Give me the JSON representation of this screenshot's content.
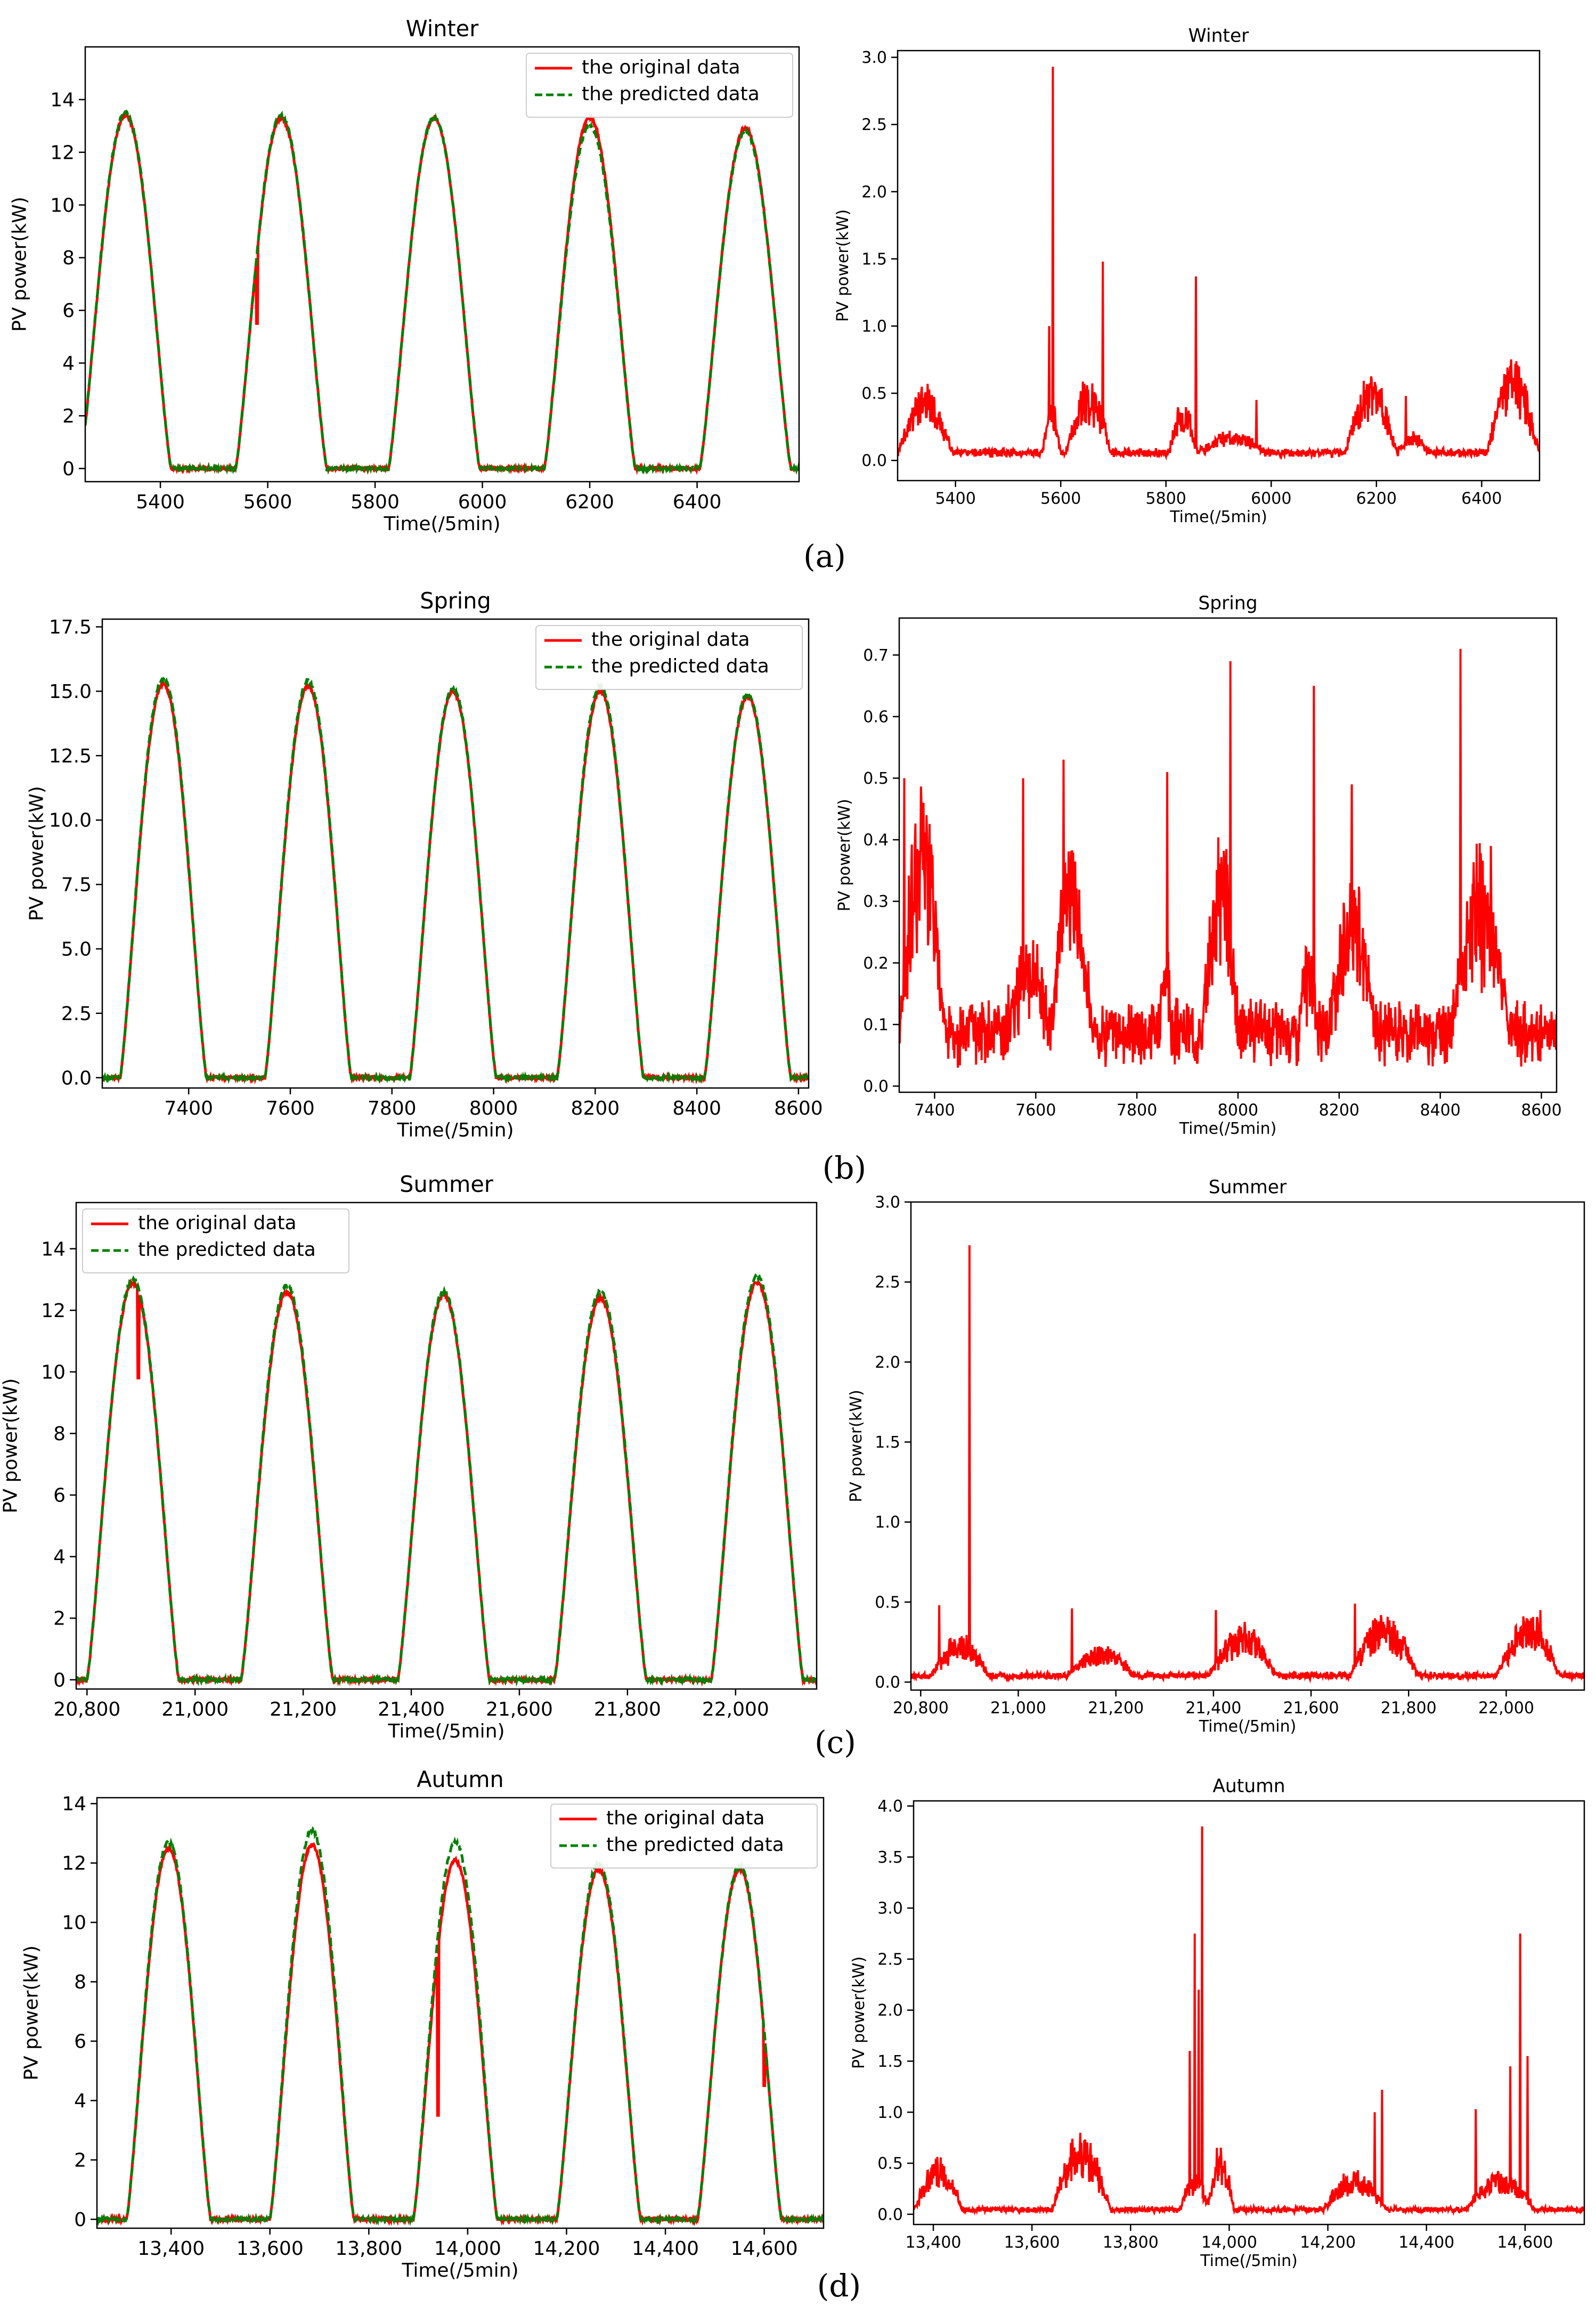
{
  "figure": {
    "panel_labels": [
      "(a)",
      "(b)",
      "(c)",
      "(d)"
    ],
    "series_colors": {
      "original": "#ff0000",
      "predicted": "#008000",
      "error": "#ff0000"
    }
  },
  "chart_data": [
    {
      "id": "winter-power",
      "type": "line",
      "title": "Winter",
      "xlabel": "Time(/5min)",
      "ylabel": "PV power(kW)",
      "xlim": [
        5260,
        6590
      ],
      "ylim": [
        -0.5,
        16
      ],
      "xticks": [
        5400,
        5600,
        5800,
        6000,
        6200,
        6400
      ],
      "xtick_labels": [
        "5400",
        "5600",
        "5800",
        "6000",
        "6200",
        "6400"
      ],
      "yticks": [
        0,
        2,
        4,
        6,
        8,
        10,
        12,
        14
      ],
      "ytick_labels": [
        "0",
        "2",
        "4",
        "6",
        "8",
        "10",
        "12",
        "14"
      ],
      "legend": {
        "position": "upper-right",
        "entries": [
          "the original data",
          "the predicted data"
        ]
      },
      "series": [
        {
          "name": "the original data",
          "style": "solid",
          "color": "#ff0000",
          "peak_centers": [
            5335,
            5625,
            5910,
            6200,
            6490
          ],
          "peaks": [
            13.4,
            13.3,
            13.3,
            13.3,
            12.9
          ],
          "half_width": 85,
          "dips": [
            {
              "x": 5580,
              "y": 5.5
            }
          ]
        },
        {
          "name": "the predicted data",
          "style": "dashed",
          "color": "#008000",
          "peak_centers": [
            5335,
            5625,
            5910,
            6200,
            6490
          ],
          "peaks": [
            13.5,
            13.4,
            13.3,
            13.0,
            12.8
          ],
          "half_width": 85
        }
      ]
    },
    {
      "id": "winter-error",
      "type": "line",
      "title": "Winter",
      "xlabel": "Time(/5min)",
      "ylabel": "PV power(kW)",
      "xlim": [
        5290,
        6510
      ],
      "ylim": [
        -0.15,
        3.05
      ],
      "xticks": [
        5400,
        5600,
        5800,
        6000,
        6200,
        6400
      ],
      "xtick_labels": [
        "5400",
        "5600",
        "5800",
        "6000",
        "6200",
        "6400"
      ],
      "yticks": [
        0,
        0.5,
        1,
        1.5,
        2,
        2.5,
        3
      ],
      "ytick_labels": [
        "0.0",
        "0.5",
        "1.0",
        "1.5",
        "2.0",
        "2.5",
        "3.0"
      ],
      "series": [
        {
          "name": "error",
          "style": "solid",
          "color": "#ff0000",
          "baseline": 0.05,
          "noise": 0.05,
          "bumps": [
            {
              "start": 5290,
              "end": 5395,
              "amp": 0.4
            },
            {
              "start": 5565,
              "end": 5600,
              "amp": 0.3
            },
            {
              "start": 5610,
              "end": 5695,
              "amp": 0.42
            },
            {
              "start": 5805,
              "end": 5860,
              "amp": 0.3
            },
            {
              "start": 5860,
              "end": 5990,
              "amp": 0.12
            },
            {
              "start": 6140,
              "end": 6240,
              "amp": 0.45
            },
            {
              "start": 6240,
              "end": 6300,
              "amp": 0.12
            },
            {
              "start": 6410,
              "end": 6510,
              "amp": 0.55
            }
          ],
          "spikes": [
            {
              "x": 5585,
              "y": 2.93
            },
            {
              "x": 5578,
              "y": 1.0
            },
            {
              "x": 5680,
              "y": 1.48
            },
            {
              "x": 5857,
              "y": 1.37
            },
            {
              "x": 5972,
              "y": 0.45
            },
            {
              "x": 6256,
              "y": 0.48
            }
          ]
        }
      ]
    },
    {
      "id": "spring-power",
      "type": "line",
      "title": "Spring",
      "xlabel": "Time(/5min)",
      "ylabel": "PV power(kW)",
      "xlim": [
        7230,
        8620
      ],
      "ylim": [
        -0.4,
        17.8
      ],
      "xticks": [
        7400,
        7600,
        7800,
        8000,
        8200,
        8400,
        8600
      ],
      "xtick_labels": [
        "7400",
        "7600",
        "7800",
        "8000",
        "8200",
        "8400",
        "8600"
      ],
      "yticks": [
        0,
        2.5,
        5,
        7.5,
        10,
        12.5,
        15,
        17.5
      ],
      "ytick_labels": [
        "0.0",
        "2.5",
        "5.0",
        "7.5",
        "10.0",
        "12.5",
        "15.0",
        "17.5"
      ],
      "legend": {
        "position": "upper-right",
        "entries": [
          "the original data",
          "the predicted data"
        ]
      },
      "series": [
        {
          "name": "the original data",
          "style": "solid",
          "color": "#ff0000",
          "peak_centers": [
            7350,
            7635,
            7920,
            8210,
            8500
          ],
          "peaks": [
            15.3,
            15.2,
            15.0,
            15.0,
            14.8
          ],
          "half_width": 85
        },
        {
          "name": "the predicted data",
          "style": "dashed",
          "color": "#008000",
          "peak_centers": [
            7350,
            7635,
            7920,
            8210,
            8500
          ],
          "peaks": [
            15.5,
            15.4,
            15.1,
            15.2,
            14.9
          ],
          "half_width": 85
        }
      ]
    },
    {
      "id": "spring-error",
      "type": "line",
      "title": "Spring",
      "xlabel": "Time(/5min)",
      "ylabel": "PV power(kW)",
      "xlim": [
        7330,
        8630
      ],
      "ylim": [
        -0.01,
        0.76
      ],
      "xticks": [
        7400,
        7600,
        7800,
        8000,
        8200,
        8400,
        8600
      ],
      "xtick_labels": [
        "7400",
        "7600",
        "7800",
        "8000",
        "8200",
        "8400",
        "8600"
      ],
      "yticks": [
        0,
        0.1,
        0.2,
        0.3,
        0.4,
        0.5,
        0.6,
        0.7
      ],
      "ytick_labels": [
        "0.0",
        "0.1",
        "0.2",
        "0.3",
        "0.4",
        "0.5",
        "0.6",
        "0.7"
      ],
      "series": [
        {
          "name": "error",
          "style": "solid",
          "color": "#ff0000",
          "baseline": 0.07,
          "noise": 0.1,
          "bumps": [
            {
              "start": 7330,
              "end": 7420,
              "amp": 0.3
            },
            {
              "start": 7540,
              "end": 7630,
              "amp": 0.1
            },
            {
              "start": 7630,
              "end": 7710,
              "amp": 0.25
            },
            {
              "start": 7840,
              "end": 7870,
              "amp": 0.1
            },
            {
              "start": 7930,
              "end": 8000,
              "amp": 0.25
            },
            {
              "start": 8120,
              "end": 8160,
              "amp": 0.1
            },
            {
              "start": 8180,
              "end": 8270,
              "amp": 0.2
            },
            {
              "start": 8420,
              "end": 8540,
              "amp": 0.2
            }
          ],
          "spikes": [
            {
              "x": 7340,
              "y": 0.5
            },
            {
              "x": 7575,
              "y": 0.5
            },
            {
              "x": 7655,
              "y": 0.53
            },
            {
              "x": 7860,
              "y": 0.51
            },
            {
              "x": 7985,
              "y": 0.69
            },
            {
              "x": 8150,
              "y": 0.65
            },
            {
              "x": 8225,
              "y": 0.49
            },
            {
              "x": 8440,
              "y": 0.71
            },
            {
              "x": 8500,
              "y": 0.39
            }
          ]
        }
      ]
    },
    {
      "id": "summer-power",
      "type": "line",
      "title": "Summer",
      "xlabel": "Time(/5min)",
      "ylabel": "PV power(kW)",
      "xlim": [
        20780,
        22150
      ],
      "ylim": [
        -0.3,
        15.5
      ],
      "xticks": [
        20800,
        21000,
        21200,
        21400,
        21600,
        21800,
        22000
      ],
      "xtick_labels": [
        "20,800",
        "21,000",
        "21,200",
        "21,400",
        "21,600",
        "21,800",
        "22,000"
      ],
      "yticks": [
        0,
        2,
        4,
        6,
        8,
        10,
        12,
        14
      ],
      "ytick_labels": [
        "0",
        "2",
        "4",
        "6",
        "8",
        "10",
        "12",
        "14"
      ],
      "legend": {
        "position": "upper-left",
        "entries": [
          "the original data",
          "the predicted data"
        ]
      },
      "series": [
        {
          "name": "the original data",
          "style": "solid",
          "color": "#ff0000",
          "peak_centers": [
            20885,
            21170,
            21460,
            21750,
            22040
          ],
          "peaks": [
            12.9,
            12.6,
            12.5,
            12.4,
            12.9
          ],
          "half_width": 85,
          "dips": [
            {
              "x": 20895,
              "y": 9.8
            }
          ]
        },
        {
          "name": "the predicted data",
          "style": "dashed",
          "color": "#008000",
          "peak_centers": [
            20885,
            21170,
            21460,
            21750,
            22040
          ],
          "peaks": [
            13.0,
            12.8,
            12.6,
            12.6,
            13.1
          ],
          "half_width": 85
        }
      ]
    },
    {
      "id": "summer-error",
      "type": "line",
      "title": "Summer",
      "xlabel": "Time(/5min)",
      "ylabel": "PV power(kW)",
      "xlim": [
        20780,
        22160
      ],
      "ylim": [
        -0.05,
        3.0
      ],
      "xticks": [
        20800,
        21000,
        21200,
        21400,
        21600,
        21800,
        22000
      ],
      "xtick_labels": [
        "20,800",
        "21,000",
        "21,200",
        "21,400",
        "21,600",
        "21,800",
        "22,000"
      ],
      "yticks": [
        0,
        0.5,
        1,
        1.5,
        2,
        2.5,
        3
      ],
      "ytick_labels": [
        "0.0",
        "0.5",
        "1.0",
        "1.5",
        "2.0",
        "2.5",
        "3.0"
      ],
      "series": [
        {
          "name": "error",
          "style": "solid",
          "color": "#ff0000",
          "baseline": 0.03,
          "noise": 0.05,
          "bumps": [
            {
              "start": 20820,
              "end": 20940,
              "amp": 0.2
            },
            {
              "start": 21100,
              "end": 21240,
              "amp": 0.15
            },
            {
              "start": 21390,
              "end": 21530,
              "amp": 0.25
            },
            {
              "start": 21680,
              "end": 21820,
              "amp": 0.3
            },
            {
              "start": 21980,
              "end": 22110,
              "amp": 0.3
            }
          ],
          "spikes": [
            {
              "x": 20900,
              "y": 2.73
            },
            {
              "x": 20838,
              "y": 0.48
            },
            {
              "x": 21110,
              "y": 0.46
            },
            {
              "x": 21405,
              "y": 0.45
            },
            {
              "x": 21690,
              "y": 0.49
            },
            {
              "x": 22070,
              "y": 0.45
            }
          ]
        }
      ]
    },
    {
      "id": "autumn-power",
      "type": "line",
      "title": "Autumn",
      "xlabel": "Time(/5min)",
      "ylabel": "PV power(kW)",
      "xlim": [
        13250,
        14720
      ],
      "ylim": [
        -0.3,
        14.2
      ],
      "xticks": [
        13400,
        13600,
        13800,
        14000,
        14200,
        14400,
        14600
      ],
      "xtick_labels": [
        "13,400",
        "13,600",
        "13,800",
        "14,000",
        "14,200",
        "14,400",
        "14,600"
      ],
      "yticks": [
        0,
        2,
        4,
        6,
        8,
        10,
        12,
        14
      ],
      "ytick_labels": [
        "0",
        "2",
        "4",
        "6",
        "8",
        "10",
        "12",
        "14"
      ],
      "legend": {
        "position": "upper-right",
        "entries": [
          "the original data",
          "the predicted data"
        ]
      },
      "series": [
        {
          "name": "the original data",
          "style": "solid",
          "color": "#ff0000",
          "peak_centers": [
            13395,
            13685,
            13975,
            14265,
            14550
          ],
          "peaks": [
            12.5,
            12.6,
            12.1,
            11.8,
            11.8
          ],
          "half_width": 85,
          "dips": [
            {
              "x": 13940,
              "y": 3.5
            },
            {
              "x": 14600,
              "y": 4.5
            }
          ]
        },
        {
          "name": "the predicted data",
          "style": "dashed",
          "color": "#008000",
          "peak_centers": [
            13395,
            13685,
            13975,
            14265,
            14550
          ],
          "peaks": [
            12.7,
            13.1,
            12.7,
            12.0,
            11.9
          ],
          "half_width": 85
        }
      ]
    },
    {
      "id": "autumn-error",
      "type": "line",
      "title": "Autumn",
      "xlabel": "Time(/5min)",
      "ylabel": "PV power(kW)",
      "xlim": [
        13360,
        14720
      ],
      "ylim": [
        -0.1,
        4.05
      ],
      "xticks": [
        13400,
        13600,
        13800,
        14000,
        14200,
        14400,
        14600
      ],
      "xtick_labels": [
        "13,400",
        "13,600",
        "13,800",
        "14,000",
        "14,200",
        "14,400",
        "14,600"
      ],
      "yticks": [
        0,
        0.5,
        1,
        1.5,
        2,
        2.5,
        3,
        3.5,
        4
      ],
      "ytick_labels": [
        "0.0",
        "0.5",
        "1.0",
        "1.5",
        "2.0",
        "2.5",
        "3.0",
        "3.5",
        "4.0"
      ],
      "series": [
        {
          "name": "error",
          "style": "solid",
          "color": "#ff0000",
          "baseline": 0.03,
          "noise": 0.07,
          "bumps": [
            {
              "start": 13360,
              "end": 13460,
              "amp": 0.4
            },
            {
              "start": 13640,
              "end": 13760,
              "amp": 0.6
            },
            {
              "start": 13900,
              "end": 13960,
              "amp": 0.3
            },
            {
              "start": 13955,
              "end": 14010,
              "amp": 0.5
            },
            {
              "start": 14190,
              "end": 14320,
              "amp": 0.3
            },
            {
              "start": 14480,
              "end": 14620,
              "amp": 0.3
            }
          ],
          "spikes": [
            {
              "x": 13945,
              "y": 3.8
            },
            {
              "x": 13930,
              "y": 2.75
            },
            {
              "x": 13920,
              "y": 1.6
            },
            {
              "x": 13938,
              "y": 2.2
            },
            {
              "x": 14310,
              "y": 1.22
            },
            {
              "x": 14295,
              "y": 1.0
            },
            {
              "x": 14500,
              "y": 1.03
            },
            {
              "x": 14570,
              "y": 1.45
            },
            {
              "x": 14590,
              "y": 2.75
            },
            {
              "x": 14605,
              "y": 1.55
            }
          ]
        }
      ]
    }
  ]
}
